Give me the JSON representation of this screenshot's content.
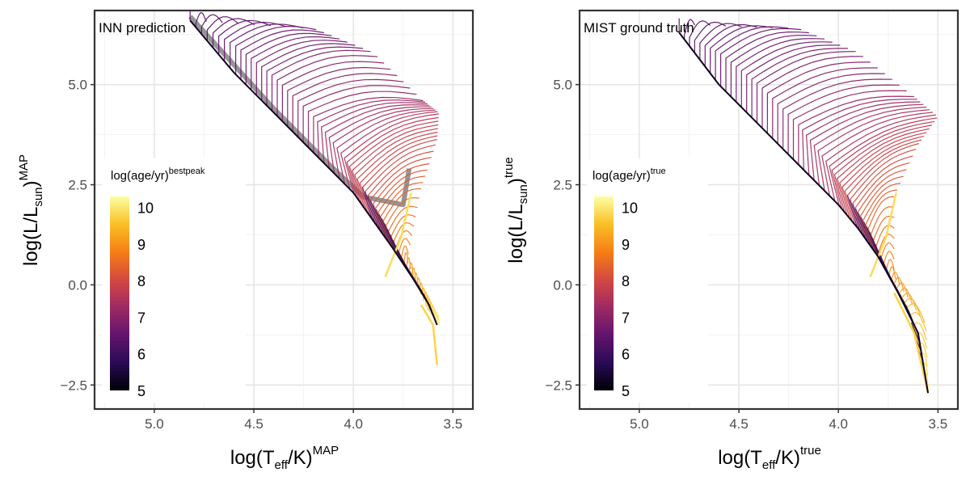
{
  "chart_data": [
    {
      "type": "line",
      "title": "INN prediction",
      "xlabel": {
        "base": "log(T",
        "sub": "eff",
        "mid": "/K)",
        "sup": "MAP"
      },
      "ylabel": {
        "base": "log(L/L",
        "sub": "sun",
        "mid": ")",
        "sup": "MAP"
      },
      "xlim": [
        5.3,
        3.4
      ],
      "ylim": [
        -3.1,
        6.85
      ],
      "x_ticks": [
        "5.0",
        "4.5",
        "4.0",
        "3.5"
      ],
      "x_tick_values": [
        5.0,
        4.5,
        4.0,
        3.5
      ],
      "y_ticks": [
        "5.0",
        "2.5",
        "0.0",
        "−2.5"
      ],
      "y_tick_values": [
        5.0,
        2.5,
        0.0,
        -2.5
      ],
      "grid": true,
      "legend": {
        "title": "log(age/yr)",
        "title_sup": "bestpeak",
        "placement": "left",
        "ticks": [
          "10",
          "9",
          "8",
          "7",
          "6",
          "5"
        ],
        "tick_values": [
          10,
          9,
          8,
          7,
          6,
          5
        ],
        "range": [
          5,
          10.3
        ]
      },
      "series_description": "Stellar evolutionary tracks colored by age",
      "tracks": {
        "zams": [
          [
            4.82,
            6.6
          ],
          [
            4.6,
            5.3
          ],
          [
            4.4,
            4.3
          ],
          [
            4.2,
            3.3
          ],
          [
            4.0,
            2.3
          ],
          [
            3.9,
            1.6
          ],
          [
            3.8,
            0.9
          ],
          [
            3.7,
            0.15
          ],
          [
            3.62,
            -0.5
          ],
          [
            3.58,
            -1.0
          ]
        ],
        "tam": [
          [
            4.82,
            6.6
          ],
          [
            4.6,
            6.0
          ],
          [
            4.4,
            5.2
          ],
          [
            4.2,
            4.2
          ],
          [
            4.05,
            3.2
          ],
          [
            3.95,
            2.4
          ],
          [
            3.85,
            1.6
          ],
          [
            3.75,
            0.6
          ],
          [
            3.65,
            -0.2
          ],
          [
            3.58,
            -1.0
          ]
        ],
        "end": [
          [
            4.82,
            6.6
          ],
          [
            4.2,
            6.4
          ],
          [
            3.9,
            5.8
          ],
          [
            3.65,
            4.6
          ],
          [
            3.57,
            4.3
          ],
          [
            3.58,
            3.6
          ],
          [
            3.66,
            2.4
          ],
          [
            3.73,
            0.6
          ],
          [
            3.63,
            -0.6
          ],
          [
            3.57,
            -1.0
          ]
        ],
        "low_mass_tail": [
          [
            3.66,
            -0.5
          ],
          [
            3.6,
            -1.0
          ],
          [
            3.58,
            -2.0
          ]
        ],
        "gray_band": [
          [
            4.82,
            6.7
          ],
          [
            4.4,
            4.4
          ],
          [
            4.1,
            2.9
          ],
          [
            3.95,
            2.2
          ],
          [
            3.75,
            2.0
          ],
          [
            3.72,
            2.9
          ]
        ]
      }
    },
    {
      "type": "line",
      "title": "MIST ground truth",
      "xlabel": {
        "base": "log(T",
        "sub": "eff",
        "mid": "/K)",
        "sup": "true"
      },
      "ylabel": {
        "base": "log(L/L",
        "sub": "sun",
        "mid": ")",
        "sup": "true"
      },
      "xlim": [
        5.3,
        3.4
      ],
      "ylim": [
        -3.1,
        6.85
      ],
      "x_ticks": [
        "5.0",
        "4.5",
        "4.0",
        "3.5"
      ],
      "x_tick_values": [
        5.0,
        4.5,
        4.0,
        3.5
      ],
      "y_ticks": [
        "5.0",
        "2.5",
        "0.0",
        "−2.5"
      ],
      "y_tick_values": [
        5.0,
        2.5,
        0.0,
        -2.5
      ],
      "grid": true,
      "legend": {
        "title": "log(age/yr)",
        "title_sup": "true",
        "placement": "left",
        "ticks": [
          "10",
          "9",
          "8",
          "7",
          "6",
          "5"
        ],
        "tick_values": [
          10,
          9,
          8,
          7,
          6,
          5
        ],
        "range": [
          5,
          10.3
        ]
      },
      "series_description": "Stellar evolutionary tracks colored by age",
      "tracks": {
        "zams": [
          [
            4.8,
            6.3
          ],
          [
            4.6,
            5.0
          ],
          [
            4.4,
            4.0
          ],
          [
            4.2,
            3.0
          ],
          [
            4.0,
            2.0
          ],
          [
            3.9,
            1.4
          ],
          [
            3.8,
            0.7
          ],
          [
            3.7,
            -0.2
          ],
          [
            3.6,
            -1.2
          ],
          [
            3.55,
            -2.7
          ]
        ],
        "tam": [
          [
            4.8,
            6.3
          ],
          [
            4.6,
            5.8
          ],
          [
            4.4,
            5.0
          ],
          [
            4.2,
            4.0
          ],
          [
            4.05,
            3.0
          ],
          [
            3.95,
            2.2
          ],
          [
            3.85,
            1.4
          ],
          [
            3.75,
            0.3
          ],
          [
            3.65,
            -0.6
          ],
          [
            3.55,
            -2.7
          ]
        ],
        "end": [
          [
            4.8,
            6.5
          ],
          [
            4.2,
            6.4
          ],
          [
            3.9,
            5.8
          ],
          [
            3.62,
            4.7
          ],
          [
            3.5,
            4.2
          ],
          [
            3.6,
            3.5
          ],
          [
            3.72,
            2.2
          ],
          [
            3.72,
            0.2
          ],
          [
            3.56,
            -1.0
          ],
          [
            3.55,
            -2.7
          ]
        ],
        "low_mass_tail": [
          [
            3.72,
            -0.2
          ],
          [
            3.62,
            -1.2
          ],
          [
            3.55,
            -2.7
          ]
        ],
        "gray_band": []
      }
    }
  ]
}
